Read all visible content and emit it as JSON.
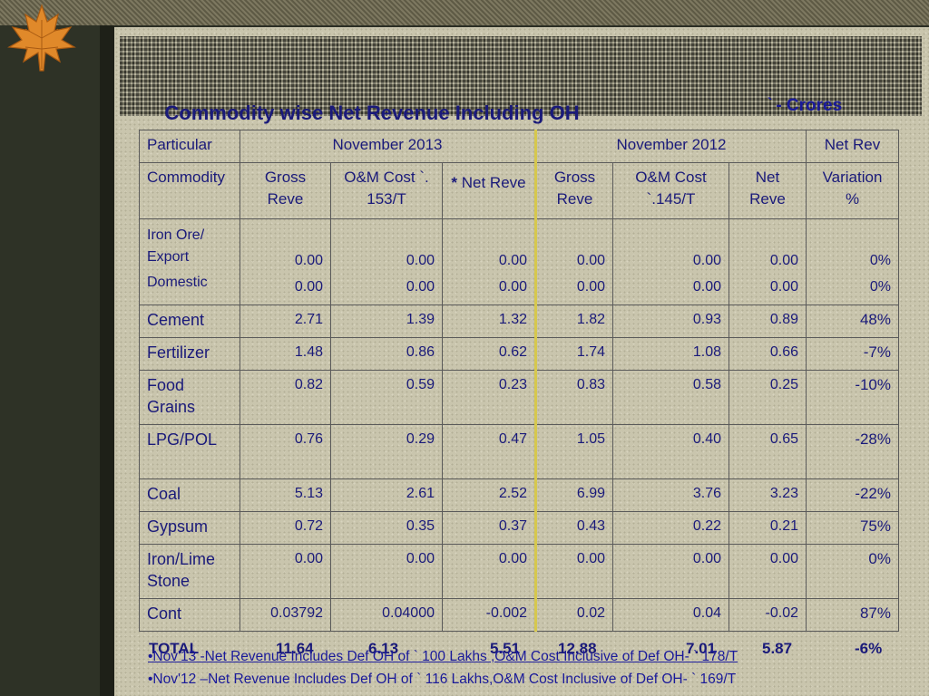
{
  "slide": {
    "title": "Commodity wise Net Revenue Including OH",
    "unit_symbol": "`",
    "unit_label": "- Crores"
  },
  "table": {
    "h_particular": "Particular",
    "h_nov2013": "November 2013",
    "h_nov2012": "November 2012",
    "h_netrev": "Net Rev",
    "h_commodity": "Commodity",
    "h_gross13": "Gross Reve",
    "h_om13": "O&M Cost `. 153/T",
    "h_net13_star": "*",
    "h_net13": " Net Reve",
    "h_gross12": "Gross Reve",
    "h_om12": "O&M Cost `.145/T",
    "h_net12": "Net Reve",
    "h_variation": "Variation %",
    "iron_label1": "Iron Ore/ Export",
    "iron_label2": "Domestic",
    "iron_export": [
      "0.00",
      "0.00",
      "0.00",
      "0.00",
      "0.00",
      "0.00",
      "0%"
    ],
    "iron_domestic": [
      "0.00",
      "0.00",
      "0.00",
      "0.00",
      "0.00",
      "0.00",
      "0%"
    ],
    "rows": [
      {
        "label": "Cement",
        "values": [
          "2.71",
          "1.39",
          "1.32",
          "1.82",
          "0.93",
          "0.89",
          "48%"
        ]
      },
      {
        "label": "Fertilizer",
        "values": [
          "1.48",
          "0.86",
          "0.62",
          "1.74",
          "1.08",
          "0.66",
          "-7%"
        ]
      },
      {
        "label": "Food Grains",
        "values": [
          "0.82",
          "0.59",
          "0.23",
          "0.83",
          "0.58",
          "0.25",
          "-10%"
        ]
      },
      {
        "label": "LPG/POL",
        "values": [
          "0.76",
          "0.29",
          "0.47",
          "1.05",
          "0.40",
          "0.65",
          "-28%"
        ]
      },
      {
        "label": "Coal",
        "values": [
          "5.13",
          "2.61",
          "2.52",
          "6.99",
          "3.76",
          "3.23",
          "-22%"
        ]
      },
      {
        "label": "Gypsum",
        "values": [
          "0.72",
          "0.35",
          "0.37",
          "0.43",
          "0.22",
          "0.21",
          "75%"
        ]
      },
      {
        "label": "Iron/Lime Stone",
        "values": [
          "0.00",
          "0.00",
          "0.00",
          "0.00",
          "0.00",
          "0.00",
          "0%"
        ]
      },
      {
        "label": "Cont",
        "values": [
          "0.03792",
          "0.04000",
          "-0.002",
          "0.02",
          "0.04",
          "-0.02",
          "87%"
        ]
      }
    ],
    "total": {
      "label": "TOTAL",
      "values": [
        "11.64",
        "6.13",
        "5.51",
        "12.88",
        "7.01",
        "5.87",
        "-6%"
      ]
    }
  },
  "notes": {
    "n1": "•Nov'13 -Net Revenue Includes Def OH of ` 100 Lakhs ,O&M Cost Inclusive of Def OH- ` 178/T",
    "n2": "•Nov'12 –Net Revenue Includes Def OH of ` 116 Lakhs,O&M Cost Inclusive of Def OH- ` 169/T"
  }
}
